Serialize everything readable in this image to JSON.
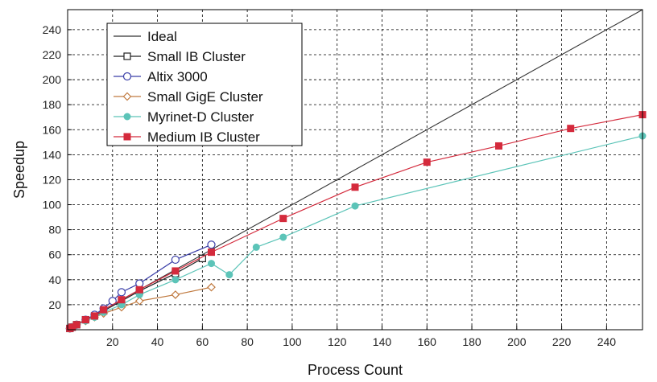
{
  "chart_data": {
    "type": "line",
    "title": "",
    "xlabel": "Process Count",
    "ylabel": "Speedup",
    "xlim": [
      0,
      256
    ],
    "ylim": [
      0,
      256
    ],
    "xticks": [
      20,
      40,
      60,
      80,
      100,
      120,
      140,
      160,
      180,
      200,
      220,
      240
    ],
    "yticks": [
      20,
      40,
      60,
      80,
      100,
      120,
      140,
      160,
      180,
      200,
      220,
      240
    ],
    "grid": true,
    "legend_position": "top-left",
    "series": [
      {
        "name": "Ideal",
        "marker": "none",
        "color": "#333333",
        "x": [
          0,
          256
        ],
        "y": [
          0,
          256
        ]
      },
      {
        "name": "Small IB Cluster",
        "marker": "open-square",
        "color": "#222222",
        "x": [
          1,
          2,
          4,
          8,
          12,
          16,
          24,
          32,
          48,
          60
        ],
        "y": [
          1,
          2,
          4,
          8,
          11,
          15,
          23,
          31,
          45,
          57
        ]
      },
      {
        "name": "Altix 3000",
        "marker": "open-circle",
        "color": "#3a3ea8",
        "x": [
          1,
          2,
          4,
          8,
          12,
          16,
          20,
          24,
          32,
          48,
          64
        ],
        "y": [
          1,
          2,
          4,
          8,
          12,
          17,
          23,
          30,
          37,
          56,
          68
        ]
      },
      {
        "name": "Small GigE Cluster",
        "marker": "open-diamond",
        "color": "#c07a40",
        "x": [
          1,
          2,
          4,
          8,
          12,
          16,
          24,
          32,
          48,
          64
        ],
        "y": [
          1,
          2,
          4,
          7,
          10,
          13,
          18,
          23,
          28,
          34
        ]
      },
      {
        "name": "Myrinet-D Cluster",
        "marker": "filled-circle",
        "color": "#5cc4b8",
        "x": [
          1,
          2,
          4,
          8,
          12,
          16,
          24,
          32,
          48,
          64,
          72,
          84,
          96,
          128,
          256
        ],
        "y": [
          1,
          2,
          4,
          7,
          10,
          14,
          20,
          28,
          40,
          53,
          44,
          66,
          74,
          99,
          155
        ]
      },
      {
        "name": "Medium IB Cluster",
        "marker": "filled-square",
        "color": "#d42a3c",
        "x": [
          1,
          2,
          4,
          8,
          12,
          16,
          24,
          32,
          48,
          64,
          96,
          128,
          160,
          192,
          224,
          256
        ],
        "y": [
          1,
          2,
          4,
          8,
          11,
          16,
          24,
          32,
          47,
          62,
          89,
          114,
          134,
          147,
          161,
          172
        ]
      }
    ]
  }
}
